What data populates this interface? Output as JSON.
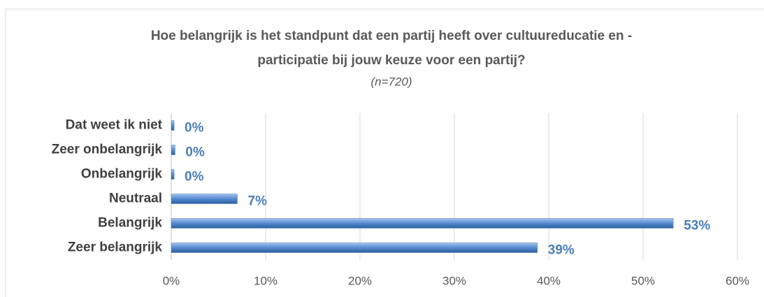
{
  "chart_data": {
    "type": "bar",
    "orientation": "horizontal",
    "title": [
      "Hoe belangrijk is het standpunt dat een partij heeft over cultuureducatie en -",
      "participatie bij jouw keuze voor een partij?"
    ],
    "subtitle": "(n=720)",
    "categories": [
      "Dat weet ik niet",
      "Zeer onbelangrijk",
      "Onbelangrijk",
      "Neutraal",
      "Belangrijk",
      "Zeer belangrijk"
    ],
    "values": [
      0.3,
      0.4,
      0.3,
      7,
      53.2,
      38.8
    ],
    "value_labels": [
      "0%",
      "0%",
      "0%",
      "7%",
      "53%",
      "39%"
    ],
    "color": "#4f81bd",
    "xlim": [
      0,
      60
    ],
    "xticks": [
      {
        "value": 0,
        "label": "0%"
      },
      {
        "value": 10,
        "label": "10%"
      },
      {
        "value": 20,
        "label": "20%"
      },
      {
        "value": 30,
        "label": "30%"
      },
      {
        "value": 40,
        "label": "40%"
      },
      {
        "value": 50,
        "label": "50%"
      },
      {
        "value": 60,
        "label": "60%"
      }
    ],
    "grid": true
  }
}
